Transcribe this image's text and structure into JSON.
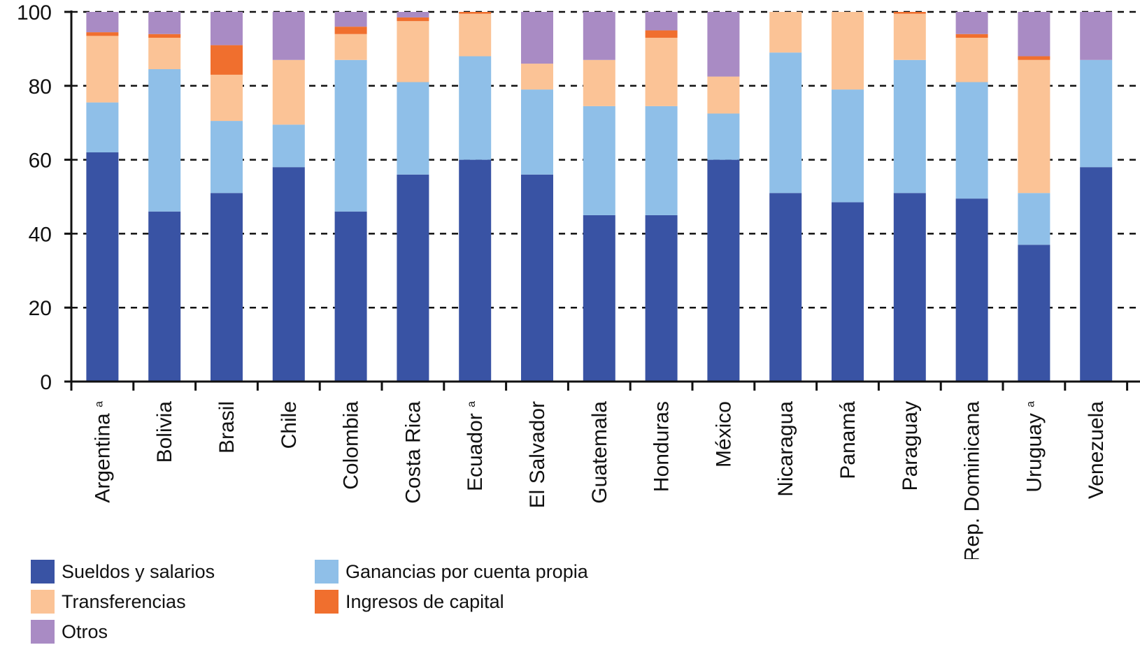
{
  "chart_data": {
    "type": "bar",
    "stacked": true,
    "categories": [
      "Argentina",
      "Bolivia",
      "Brasil",
      "Chile",
      "Colombia",
      "Costa Rica",
      "Ecuador",
      "El Salvador",
      "Guatemala",
      "Honduras",
      "México",
      "Nicaragua",
      "Panamá",
      "Paraguay",
      "Rep. Dominicana",
      "Uruguay",
      "Venezuela"
    ],
    "category_notes": [
      "a",
      "",
      "",
      "",
      "",
      "",
      "a",
      "",
      "",
      "",
      "",
      "",
      "",
      "",
      "",
      "a",
      ""
    ],
    "ylim": [
      0,
      100
    ],
    "yticks": [
      0,
      20,
      40,
      60,
      80,
      100
    ],
    "ytick_labels": [
      "0",
      "20",
      "40",
      "60",
      "80",
      "100"
    ],
    "grid": "horizontal dashed",
    "legend_position": "bottom",
    "series": [
      {
        "name": "Sueldos y salarios",
        "color": "#3953a4",
        "values": [
          62,
          46,
          51,
          58,
          46,
          56,
          60,
          56,
          45,
          45,
          60,
          51,
          48.5,
          51,
          49.5,
          37,
          58
        ]
      },
      {
        "name": "Ganancias por cuenta propia",
        "color": "#8fbfe8",
        "values": [
          13.5,
          38.5,
          19.5,
          11.5,
          41,
          25,
          28,
          23,
          29.5,
          29.5,
          12.5,
          38,
          30.5,
          36,
          31.5,
          14,
          29
        ]
      },
      {
        "name": "Transferencias",
        "color": "#fbc396",
        "values": [
          18,
          8.5,
          12.5,
          17.5,
          7,
          16.5,
          11.5,
          7,
          12.5,
          18.5,
          10,
          11,
          21,
          12.5,
          12,
          36,
          0
        ]
      },
      {
        "name": "Ingresos de capital",
        "color": "#f06f2e",
        "values": [
          1,
          1,
          8,
          0,
          2,
          1,
          1,
          0,
          0,
          2,
          0,
          0,
          0,
          1,
          1,
          1,
          0
        ]
      },
      {
        "name": "Otros",
        "color": "#a98bc4",
        "values": [
          5.5,
          6,
          9,
          13,
          4,
          1.5,
          0,
          14,
          13,
          5,
          17.5,
          0,
          0,
          0,
          6,
          12,
          13
        ]
      }
    ]
  },
  "legend": {
    "items": [
      {
        "label": "Sueldos y salarios",
        "color": "#3953a4",
        "icon": "legend-swatch"
      },
      {
        "label": "Ganancias por cuenta propia",
        "color": "#8fbfe8",
        "icon": "legend-swatch"
      },
      {
        "label": "Transferencias",
        "color": "#fbc396",
        "icon": "legend-swatch"
      },
      {
        "label": "Ingresos de capital",
        "color": "#f06f2e",
        "icon": "legend-swatch"
      },
      {
        "label": "Otros",
        "color": "#a98bc4",
        "icon": "legend-swatch"
      }
    ]
  }
}
